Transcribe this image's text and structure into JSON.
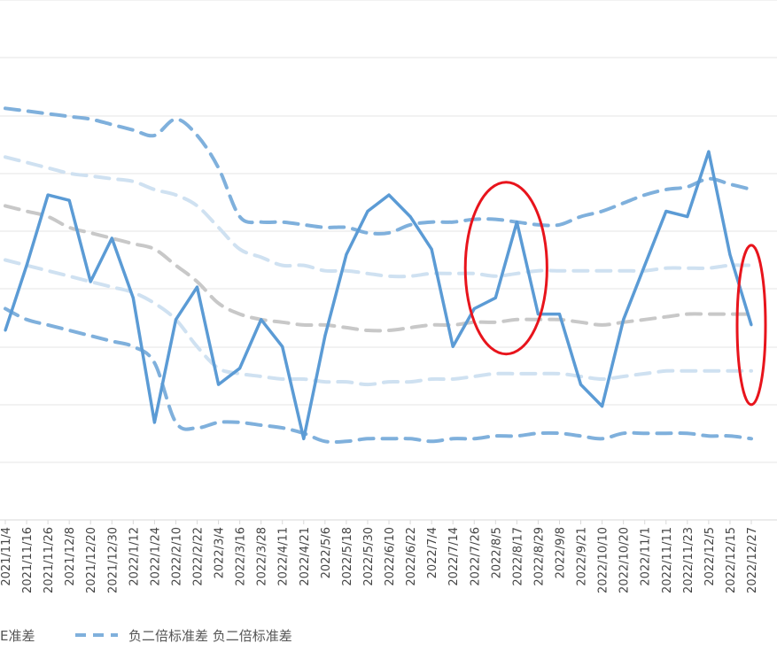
{
  "chart_data": {
    "type": "line",
    "title": "",
    "xlabel": "",
    "ylabel": "",
    "categories": [
      "2021/11/4",
      "2021/11/16",
      "2021/11/26",
      "2021/12/8",
      "2021/12/20",
      "2021/12/30",
      "2022/1/12",
      "2022/1/24",
      "2022/2/10",
      "2022/2/22",
      "2022/3/4",
      "2022/3/16",
      "2022/3/28",
      "2022/4/11",
      "2022/4/21",
      "2022/5/6",
      "2022/5/18",
      "2022/5/30",
      "2022/6/10",
      "2022/6/22",
      "2022/7/4",
      "2022/7/14",
      "2022/7/26",
      "2022/8/5",
      "2022/8/17",
      "2022/8/29",
      "2022/9/8",
      "2022/9/21",
      "2022/10/10",
      "2022/10/20",
      "2022/11/1",
      "2022/11/11",
      "2022/11/23",
      "2022/12/5",
      "2022/12/15",
      "2022/12/27"
    ],
    "series": [
      {
        "role": "main",
        "color": "#5b9bd5",
        "style": "solid",
        "values": [
          -0.6,
          0.6,
          1.9,
          1.8,
          0.3,
          1.1,
          0.0,
          -2.3,
          -0.4,
          0.2,
          -1.6,
          -1.3,
          -0.4,
          -0.9,
          -2.6,
          -0.7,
          0.8,
          1.6,
          1.9,
          1.5,
          0.9,
          -0.9,
          -0.2,
          0.0,
          1.4,
          -0.3,
          -0.3,
          -1.6,
          -2.0,
          -0.4,
          0.6,
          1.6,
          1.5,
          2.7,
          0.8,
          -0.5
        ]
      },
      {
        "role": "upper2",
        "color": "#7fb0dc",
        "style": "dashed",
        "values": [
          3.5,
          3.45,
          3.4,
          3.35,
          3.3,
          3.2,
          3.1,
          3.0,
          3.3,
          3.0,
          2.4,
          1.5,
          1.4,
          1.4,
          1.35,
          1.3,
          1.3,
          1.2,
          1.2,
          1.35,
          1.4,
          1.4,
          1.45,
          1.45,
          1.4,
          1.35,
          1.35,
          1.5,
          1.6,
          1.75,
          1.9,
          2.0,
          2.05,
          2.2,
          2.1,
          2.0
        ]
      },
      {
        "role": "upper1",
        "color": "#cfe1f1",
        "style": "dashed",
        "values": [
          2.6,
          2.5,
          2.4,
          2.3,
          2.25,
          2.2,
          2.15,
          2.0,
          1.9,
          1.7,
          1.3,
          0.9,
          0.75,
          0.6,
          0.6,
          0.5,
          0.5,
          0.45,
          0.4,
          0.4,
          0.45,
          0.45,
          0.45,
          0.4,
          0.45,
          0.5,
          0.5,
          0.5,
          0.5,
          0.5,
          0.5,
          0.55,
          0.55,
          0.55,
          0.6,
          0.6
        ]
      },
      {
        "role": "mean",
        "color": "#c8c8c8",
        "style": "dashed",
        "values": [
          1.7,
          1.6,
          1.5,
          1.3,
          1.2,
          1.1,
          1.0,
          0.9,
          0.6,
          0.3,
          -0.1,
          -0.3,
          -0.4,
          -0.45,
          -0.5,
          -0.5,
          -0.55,
          -0.6,
          -0.6,
          -0.55,
          -0.5,
          -0.5,
          -0.45,
          -0.45,
          -0.4,
          -0.4,
          -0.4,
          -0.45,
          -0.5,
          -0.45,
          -0.4,
          -0.35,
          -0.3,
          -0.3,
          -0.3,
          -0.3
        ]
      },
      {
        "role": "lower1",
        "color": "#cfe1f1",
        "style": "dashed",
        "values": [
          0.7,
          0.6,
          0.5,
          0.4,
          0.3,
          0.2,
          0.1,
          -0.1,
          -0.4,
          -0.9,
          -1.3,
          -1.4,
          -1.45,
          -1.5,
          -1.5,
          -1.55,
          -1.55,
          -1.6,
          -1.55,
          -1.55,
          -1.5,
          -1.5,
          -1.45,
          -1.4,
          -1.4,
          -1.4,
          -1.4,
          -1.45,
          -1.5,
          -1.45,
          -1.4,
          -1.35,
          -1.35,
          -1.35,
          -1.35,
          -1.35
        ]
      },
      {
        "role": "lower2",
        "color": "#7fb0dc",
        "style": "dashed",
        "values": [
          -0.2,
          -0.4,
          -0.5,
          -0.6,
          -0.7,
          -0.8,
          -0.9,
          -1.2,
          -2.3,
          -2.4,
          -2.3,
          -2.3,
          -2.35,
          -2.4,
          -2.5,
          -2.65,
          -2.65,
          -2.6,
          -2.6,
          -2.6,
          -2.65,
          -2.6,
          -2.6,
          -2.55,
          -2.55,
          -2.5,
          -2.5,
          -2.55,
          -2.6,
          -2.5,
          -2.5,
          -2.5,
          -2.5,
          -2.55,
          -2.55,
          -2.6
        ]
      }
    ],
    "ylim": [
      -4.1,
      5.5
    ],
    "grid": true,
    "legend_position": "bottom",
    "annotations": [
      {
        "shape": "ellipse",
        "color": "#e8141c",
        "category_range": [
          "2022/7/26",
          "2022/8/29"
        ]
      },
      {
        "shape": "ellipse",
        "color": "#e8141c",
        "category_range": [
          "2022/12/27",
          "2022/12/27"
        ]
      }
    ],
    "legend": [
      {
        "label": "Ε准差",
        "marker": "dashed",
        "color": "#cfe1f1"
      },
      {
        "label": "负二倍标准差 负二倍标准差",
        "marker": "dashed",
        "color": "#7fb0dc"
      }
    ]
  }
}
